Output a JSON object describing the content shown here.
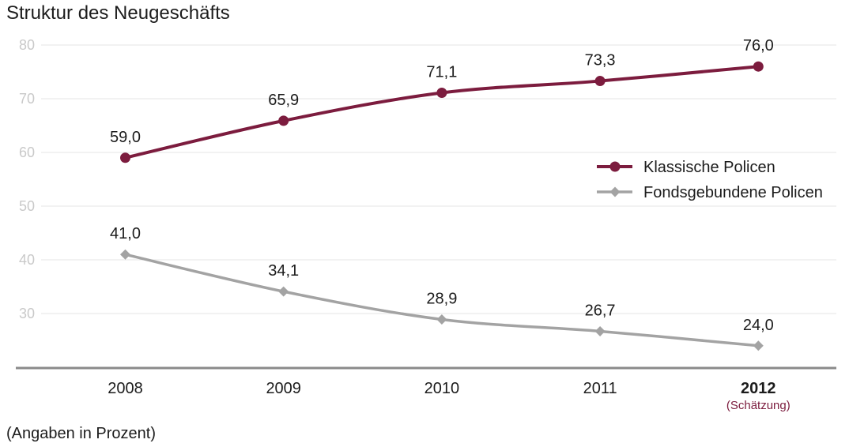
{
  "chart_data": {
    "type": "line",
    "title": "Struktur des Neugeschäfts",
    "categories": [
      "2008",
      "2009",
      "2010",
      "2011",
      "2012"
    ],
    "category_notes": [
      "",
      "",
      "",
      "",
      "(Schätzung)"
    ],
    "highlight": {
      "category": "2012",
      "color": "#7c1c3e"
    },
    "series": [
      {
        "name": "Klassische Policen",
        "values": [
          59.0,
          65.9,
          71.1,
          73.3,
          76.0
        ],
        "labels": [
          "59,0",
          "65,9",
          "71,1",
          "73,3",
          "76,0"
        ],
        "color": "#7c1c3e",
        "marker": "circle"
      },
      {
        "name": "Fondsgebundene Policen",
        "values": [
          41.0,
          34.1,
          28.9,
          26.7,
          24.0
        ],
        "labels": [
          "41,0",
          "34,1",
          "28,9",
          "26,7",
          "24,0"
        ],
        "color": "#a3a3a3",
        "marker": "diamond"
      }
    ],
    "yticks": [
      80,
      70,
      60,
      50,
      40,
      30
    ],
    "ylim": [
      20,
      80
    ],
    "grid": true,
    "legend": "center-right",
    "note": "(Angaben in Prozent)"
  }
}
